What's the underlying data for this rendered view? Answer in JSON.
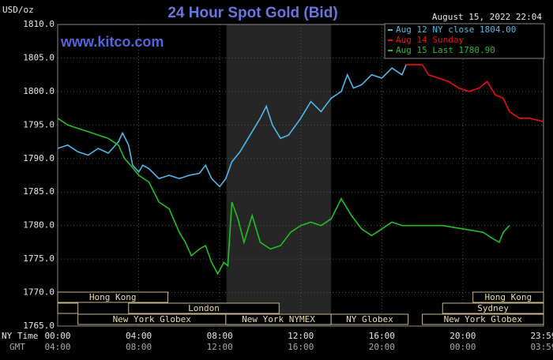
{
  "chart_data": {
    "type": "line",
    "title": "24 Hour Spot Gold (Bid)",
    "subtitle": "August 15, 2022 22:04",
    "watermark": "www.kitco.com",
    "y_label": "USD/oz",
    "x_label": "NY Time",
    "x2_label": "GMT",
    "xlim": [
      0,
      23.983
    ],
    "xticks": [
      {
        "value": 0,
        "label": "00:00"
      },
      {
        "value": 4,
        "label": "04:00"
      },
      {
        "value": 8,
        "label": "08:00"
      },
      {
        "value": 12,
        "label": "12:00"
      },
      {
        "value": 16,
        "label": "16:00"
      },
      {
        "value": 20,
        "label": "20:00"
      },
      {
        "value": 23.983,
        "label": "23:59"
      }
    ],
    "x2ticks": [
      {
        "value": 0,
        "label": "04:00"
      },
      {
        "value": 4,
        "label": "08:00"
      },
      {
        "value": 8,
        "label": "12:00"
      },
      {
        "value": 12,
        "label": "16:00"
      },
      {
        "value": 16,
        "label": "20:00"
      },
      {
        "value": 20,
        "label": "00:00"
      },
      {
        "value": 23.983,
        "label": "03:59"
      }
    ],
    "ylim": [
      1765,
      1810
    ],
    "yticks": [
      {
        "value": 1765,
        "label": "1765.0"
      },
      {
        "value": 1770,
        "label": "1770.0"
      },
      {
        "value": 1775,
        "label": "1775.0"
      },
      {
        "value": 1780,
        "label": "1780.0"
      },
      {
        "value": 1785,
        "label": "1785.0"
      },
      {
        "value": 1790,
        "label": "1790.0"
      },
      {
        "value": 1795,
        "label": "1795.0"
      },
      {
        "value": 1800,
        "label": "1800.0"
      },
      {
        "value": 1805,
        "label": "1805.0"
      },
      {
        "value": 1810,
        "label": "1810.0"
      }
    ],
    "grid": true,
    "shaded": [
      8.33,
      13.5
    ],
    "legend": "top-right",
    "series": [
      {
        "name": "Aug 12 NY close 1804.00",
        "color": "#4fb8e8",
        "x": [
          0,
          0.5,
          1,
          1.5,
          2,
          2.5,
          3,
          3.2,
          3.5,
          3.7,
          4,
          4.2,
          4.5,
          5,
          5.5,
          6,
          6.5,
          7,
          7.3,
          7.6,
          8,
          8.3,
          8.6,
          9,
          9.5,
          10,
          10.3,
          10.6,
          11,
          11.4,
          12,
          12.5,
          13,
          13.5,
          14,
          14.3,
          14.6,
          15,
          15.5,
          16,
          16.5,
          17,
          17.2
        ],
        "values": [
          1791.5,
          1792,
          1791,
          1790.5,
          1791.5,
          1790.8,
          1792.5,
          1793.8,
          1792,
          1789,
          1788,
          1789,
          1788.5,
          1787,
          1787.5,
          1787,
          1787.5,
          1787.8,
          1789,
          1787,
          1785.8,
          1787,
          1789.5,
          1791,
          1793.5,
          1796,
          1797.8,
          1795,
          1793,
          1793.5,
          1796,
          1798.5,
          1797,
          1799,
          1800,
          1802.5,
          1800.5,
          1801,
          1802.5,
          1802,
          1803.5,
          1802.5,
          1804
        ]
      },
      {
        "name": "Aug 14 Sunday",
        "color": "#e81010",
        "x": [
          17.2,
          18,
          18.3,
          18.8,
          19.3,
          19.8,
          20.3,
          20.8,
          21.2,
          21.6,
          22,
          22.3,
          22.8,
          23.3,
          23.983
        ],
        "values": [
          1804,
          1804,
          1802.5,
          1802,
          1801.5,
          1800.5,
          1800,
          1800.5,
          1801.5,
          1799.5,
          1799,
          1797,
          1796,
          1796,
          1795.5
        ]
      },
      {
        "name": "Aug 15 Last 1780.90",
        "color": "#22c022",
        "x": [
          0,
          0.5,
          1,
          1.5,
          2,
          2.5,
          3,
          3.3,
          3.6,
          4,
          4.5,
          5,
          5.5,
          6,
          6.3,
          6.6,
          7,
          7.3,
          7.6,
          7.9,
          8.2,
          8.4,
          8.6,
          8.9,
          9.2,
          9.6,
          10,
          10.5,
          11,
          11.5,
          12,
          12.5,
          13,
          13.5,
          14,
          14.5,
          15,
          15.5,
          16,
          16.5,
          17,
          18,
          19,
          20,
          21,
          21.5,
          21.8,
          22,
          22.3
        ],
        "values": [
          1796,
          1795,
          1794.5,
          1794,
          1793.5,
          1793,
          1792,
          1790,
          1789,
          1787.5,
          1786.5,
          1783.5,
          1782.5,
          1779,
          1777.5,
          1775.5,
          1776.5,
          1777,
          1774.5,
          1772.8,
          1774.5,
          1774,
          1783.5,
          1781,
          1777.5,
          1781.5,
          1777.5,
          1776.5,
          1777,
          1779,
          1780,
          1780.5,
          1780,
          1781,
          1784,
          1781.5,
          1779.5,
          1778.5,
          1779.5,
          1780.5,
          1780,
          1780,
          1780,
          1779.5,
          1779,
          1778,
          1777.5,
          1779,
          1780
        ]
      }
    ],
    "session_rows": [
      [
        {
          "label": "Hong Kong",
          "start": 0,
          "end": 5.44
        },
        {
          "label": "Hong Kong",
          "start": 20.5,
          "end": 23.983
        }
      ],
      [
        {
          "label": null,
          "start": 0,
          "end": 1
        },
        {
          "label": "London",
          "start": 3.5,
          "end": 10.93
        },
        {
          "label": "Sydney",
          "start": 19,
          "end": 23.983
        }
      ],
      [
        {
          "label": "New York Globex",
          "start": 1,
          "end": 8.3
        },
        {
          "label": "New York NYMEX",
          "start": 8.3,
          "end": 13.5
        },
        {
          "label": "NY Globex",
          "start": 13.5,
          "end": 17.3
        },
        {
          "label": "New York Globex",
          "start": 18,
          "end": 23.983
        }
      ]
    ]
  }
}
